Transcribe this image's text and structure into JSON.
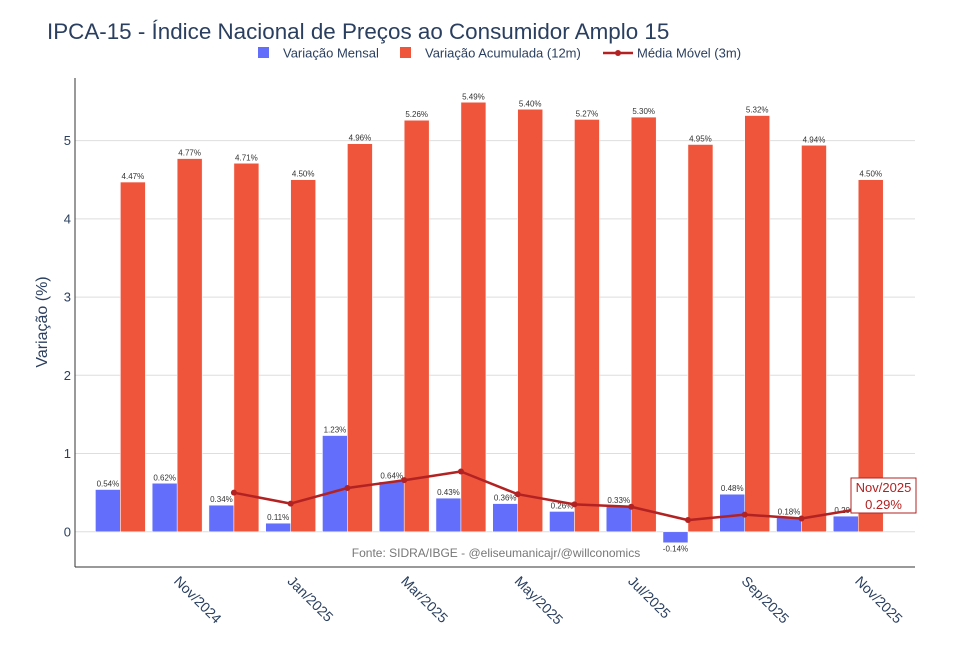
{
  "chart_data": {
    "type": "bar",
    "title": "IPCA-15 - Índice Nacional de Preços ao Consumidor Amplo 15",
    "xlabel": "",
    "ylabel": "Variação (%)",
    "ylim": [
      -0.45,
      5.8
    ],
    "yticks": [
      0,
      1,
      2,
      3,
      4,
      5
    ],
    "grid": true,
    "month_index": [
      0,
      1,
      2,
      3,
      4,
      5,
      6,
      7,
      8,
      9,
      10,
      11,
      12,
      13
    ],
    "x_ticks": [
      {
        "month_index": 1,
        "label": "Nov/2024"
      },
      {
        "month_index": 3,
        "label": "Jan/2025"
      },
      {
        "month_index": 5,
        "label": "Mar/2025"
      },
      {
        "month_index": 7,
        "label": "May/2025"
      },
      {
        "month_index": 9,
        "label": "Jul/2025"
      },
      {
        "month_index": 11,
        "label": "Sep/2025"
      },
      {
        "month_index": 13,
        "label": "Nov/2025"
      }
    ],
    "series": [
      {
        "name": "Variação Mensal",
        "type": "bar",
        "color": "#636EFA",
        "values": [
          0.54,
          0.62,
          0.34,
          0.11,
          1.23,
          0.64,
          0.43,
          0.36,
          0.26,
          0.33,
          -0.14,
          0.48,
          0.18,
          0.2
        ],
        "value_labels": [
          "0.54%",
          "0.62%",
          "0.34%",
          "0.11%",
          "1.23%",
          "0.64%",
          "0.43%",
          "0.36%",
          "0.26%",
          "0.33%",
          "-0.14%",
          "0.48%",
          "0.18%",
          "0.20%"
        ]
      },
      {
        "name": "Variação Acumulada (12m)",
        "type": "bar",
        "color": "#EF553B",
        "values": [
          4.47,
          4.77,
          4.71,
          4.5,
          4.96,
          5.26,
          5.49,
          5.4,
          5.27,
          5.3,
          4.95,
          5.32,
          4.94,
          4.5
        ],
        "value_labels": [
          "4.47%",
          "4.77%",
          "4.71%",
          "4.50%",
          "4.96%",
          "5.26%",
          "5.49%",
          "5.40%",
          "5.27%",
          "5.30%",
          "4.95%",
          "5.32%",
          "4.94%",
          "4.50%"
        ]
      },
      {
        "name": "Média Móvel (3m)",
        "type": "line",
        "color": "#B22222",
        "values": [
          null,
          null,
          0.5,
          0.36,
          0.56,
          0.66,
          0.77,
          0.48,
          0.35,
          0.32,
          0.15,
          0.22,
          0.17,
          0.29
        ]
      }
    ],
    "source_note": "Fonte: SIDRA/IBGE - @eliseumanicajr/@willconomics",
    "callout": {
      "month_index": 13,
      "lines": [
        "Nov/2025",
        "0.29%"
      ],
      "color": "#B22222"
    }
  }
}
